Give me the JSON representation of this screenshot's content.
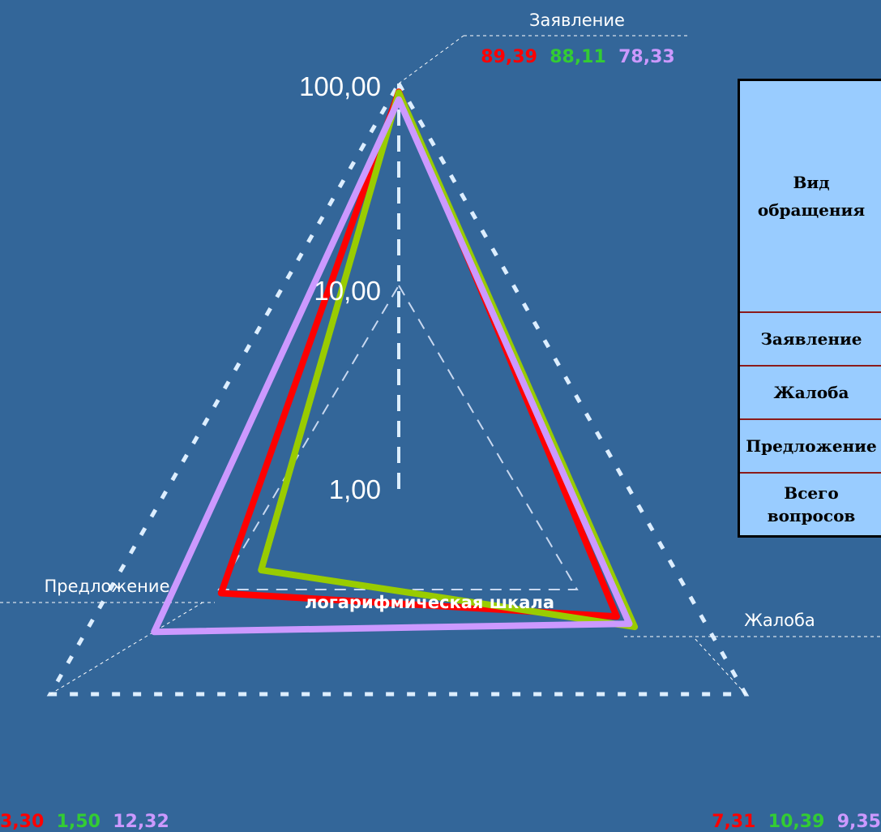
{
  "chart_data": {
    "type": "radar",
    "scale": "log",
    "axes": [
      "Заявление",
      "Жалоба",
      "Предложение"
    ],
    "tick_labels": [
      "100,00",
      "10,00",
      "1,00"
    ],
    "ylim": [
      1,
      100
    ],
    "note": "логарифмическая шкала",
    "series": [
      {
        "color": "#ff0000",
        "values": [
          89.39,
          7.31,
          3.3
        ],
        "labels": [
          "89,39",
          "7,31",
          "3,30"
        ]
      },
      {
        "color": "#99cc00",
        "label_color": "#33cc33",
        "values": [
          88.11,
          10.39,
          1.5
        ],
        "labels": [
          "88,11",
          "10,39",
          "1,50"
        ]
      },
      {
        "color": "#cc99ff",
        "values": [
          78.33,
          9.35,
          12.32
        ],
        "labels": [
          "78,33",
          "9,35",
          "12,32"
        ]
      }
    ]
  },
  "table": {
    "header": "Вид обращения",
    "rows": [
      "Заявление",
      "Жалоба",
      "Предложение",
      "Всего вопросов"
    ]
  }
}
